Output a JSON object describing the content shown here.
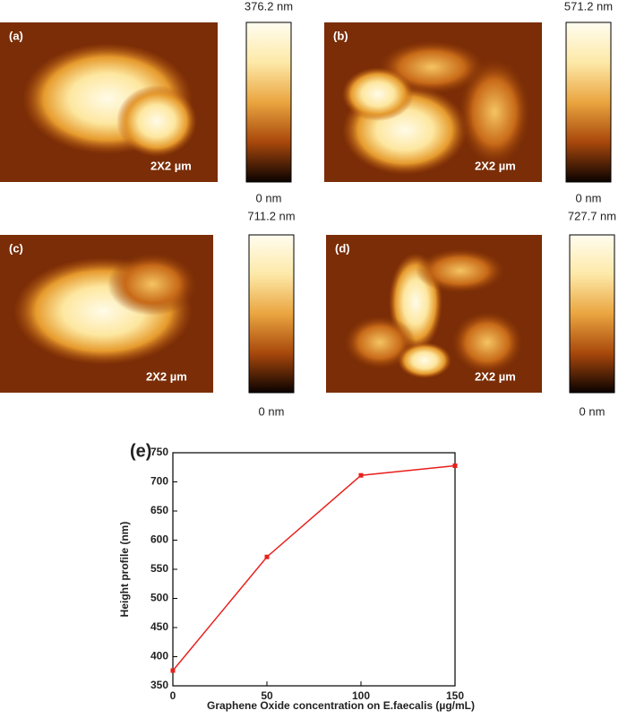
{
  "panels": [
    {
      "label": "(a)",
      "scale": "2X2 µm",
      "max": "376.2 nm",
      "min": "0 nm"
    },
    {
      "label": "(b)",
      "scale": "2X2 µm",
      "max": "571.2 nm",
      "min": "0 nm"
    },
    {
      "label": "(c)",
      "scale": "2X2 µm",
      "max": "711.2 nm",
      "min": "0 nm"
    },
    {
      "label": "(d)",
      "scale": "2X2 µm",
      "max": "727.7 nm",
      "min": "0 nm"
    }
  ],
  "chart_data": {
    "type": "line",
    "panel_label": "(e)",
    "x_label": "Graphene Oxide concentration on E.faecalis (µg/mL)",
    "y_label": "Height profile (nm)",
    "x": [
      0,
      50,
      100,
      150
    ],
    "series": [
      {
        "color": "#e8201c",
        "values": [
          376.2,
          571.2,
          711.2,
          727.7
        ]
      }
    ],
    "xlim": [
      0,
      150
    ],
    "ylim": [
      350,
      750
    ],
    "xticks": [
      0,
      50,
      100,
      150
    ],
    "yticks": [
      350,
      400,
      450,
      500,
      550,
      600,
      650,
      700,
      750
    ]
  }
}
